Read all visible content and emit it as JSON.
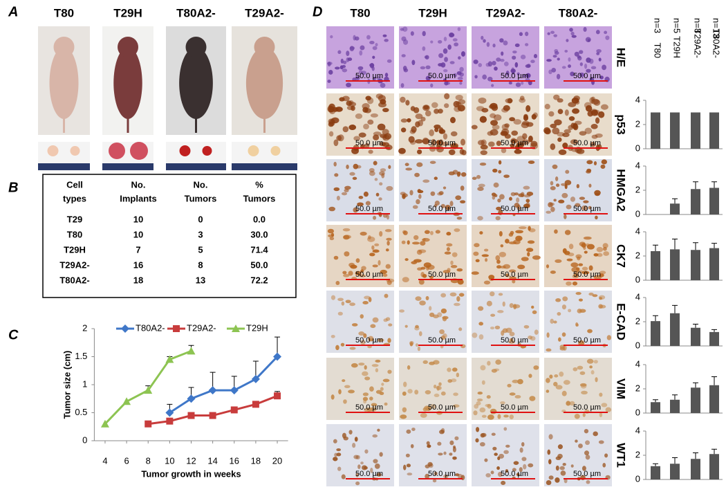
{
  "panels": {
    "a": "A",
    "b": "B",
    "c": "C",
    "d": "D"
  },
  "photos": {
    "columns": [
      "T80",
      "T29H",
      "T80A2-",
      "T29A2-"
    ]
  },
  "table": {
    "header": [
      [
        "Cell",
        "types"
      ],
      [
        "No.",
        "Implants"
      ],
      [
        "No.",
        "Tumors"
      ],
      [
        "%",
        "Tumors"
      ]
    ],
    "rows": [
      [
        "T29",
        "10",
        "0",
        "0.0"
      ],
      [
        "T80",
        "10",
        "3",
        "30.0"
      ],
      [
        "T29H",
        "7",
        "5",
        "71.4"
      ],
      [
        "T29A2-",
        "16",
        "8",
        "50.0"
      ],
      [
        "T80A2-",
        "18",
        "13",
        "72.2"
      ]
    ]
  },
  "ihc": {
    "columns": [
      "T80",
      "T29H",
      "T29A2-",
      "T80A2-"
    ],
    "rows": [
      "H/E",
      "p53",
      "HMGA2",
      "CK7",
      "E-CAD",
      "VIM",
      "WT1"
    ],
    "scale_bar": "50.0 µm"
  },
  "chart_data": [
    {
      "type": "line",
      "ylabel": "Tumor size (cm)",
      "xlabel": "Tumor growth in weeks",
      "x": [
        4,
        6,
        8,
        10,
        12,
        14,
        16,
        18,
        20
      ],
      "xlim": [
        3,
        21
      ],
      "xticks": [
        4,
        6,
        8,
        10,
        12,
        14,
        16,
        18,
        20
      ],
      "ylim": [
        0,
        2
      ],
      "yticks": [
        0,
        0.5,
        1,
        1.5,
        2
      ],
      "series": [
        {
          "name": "T80A2-",
          "color": "#3f77c8",
          "marker": "diamond",
          "values": [
            null,
            null,
            null,
            0.5,
            0.75,
            0.9,
            0.9,
            1.1,
            1.5
          ],
          "errors": [
            null,
            null,
            null,
            0.15,
            0.2,
            0.32,
            0.25,
            0.32,
            0.35
          ]
        },
        {
          "name": "T29A2-",
          "color": "#c83c3c",
          "marker": "square",
          "values": [
            null,
            null,
            0.3,
            0.35,
            0.45,
            0.45,
            0.55,
            0.65,
            0.8
          ],
          "errors": [
            null,
            null,
            0,
            0.03,
            0.05,
            0,
            0.03,
            0.03,
            0.08
          ]
        },
        {
          "name": "T29H",
          "color": "#8dc452",
          "marker": "triangle",
          "values": [
            0.3,
            0.7,
            0.9,
            1.45,
            1.6,
            null,
            null,
            null,
            null
          ],
          "errors": [
            0,
            0,
            0.08,
            0.05,
            0.1,
            null,
            null,
            null,
            null
          ]
        }
      ]
    },
    {
      "type": "bar",
      "categories": [
        "T80",
        "T29H",
        "T29A2-",
        "T80A2-"
      ],
      "sample_sizes": [
        "n=3",
        "n=5",
        "n=8",
        "n=13"
      ],
      "color": "#555555",
      "ylim": [
        0,
        4
      ],
      "yticks": [
        0,
        2,
        4
      ],
      "values": [
        3,
        3,
        3,
        3
      ],
      "errors": [
        0,
        0,
        0,
        0
      ]
    },
    {
      "type": "bar",
      "color": "#555555",
      "ylim": [
        0,
        4
      ],
      "yticks": [
        0,
        2,
        4
      ],
      "values": [
        0,
        0.9,
        2.1,
        2.2
      ],
      "errors": [
        0,
        0.4,
        0.6,
        0.5
      ]
    },
    {
      "type": "bar",
      "color": "#555555",
      "ylim": [
        0,
        4
      ],
      "yticks": [
        0,
        2,
        4
      ],
      "values": [
        2.4,
        2.55,
        2.5,
        2.65
      ],
      "errors": [
        0.5,
        0.85,
        0.6,
        0.4
      ]
    },
    {
      "type": "bar",
      "color": "#555555",
      "ylim": [
        0,
        4
      ],
      "yticks": [
        0,
        2,
        4
      ],
      "values": [
        2.05,
        2.7,
        1.5,
        1.15
      ],
      "errors": [
        0.45,
        0.65,
        0.3,
        0.2
      ]
    },
    {
      "type": "bar",
      "color": "#555555",
      "ylim": [
        0,
        4
      ],
      "yticks": [
        0,
        2,
        4
      ],
      "values": [
        0.9,
        1.1,
        2.1,
        2.3
      ],
      "errors": [
        0.2,
        0.4,
        0.4,
        0.7
      ]
    },
    {
      "type": "bar",
      "color": "#555555",
      "ylim": [
        0,
        4
      ],
      "yticks": [
        0,
        2,
        4
      ],
      "values": [
        1.1,
        1.3,
        1.7,
        2.1
      ],
      "errors": [
        0.2,
        0.5,
        0.5,
        0.4
      ]
    }
  ]
}
